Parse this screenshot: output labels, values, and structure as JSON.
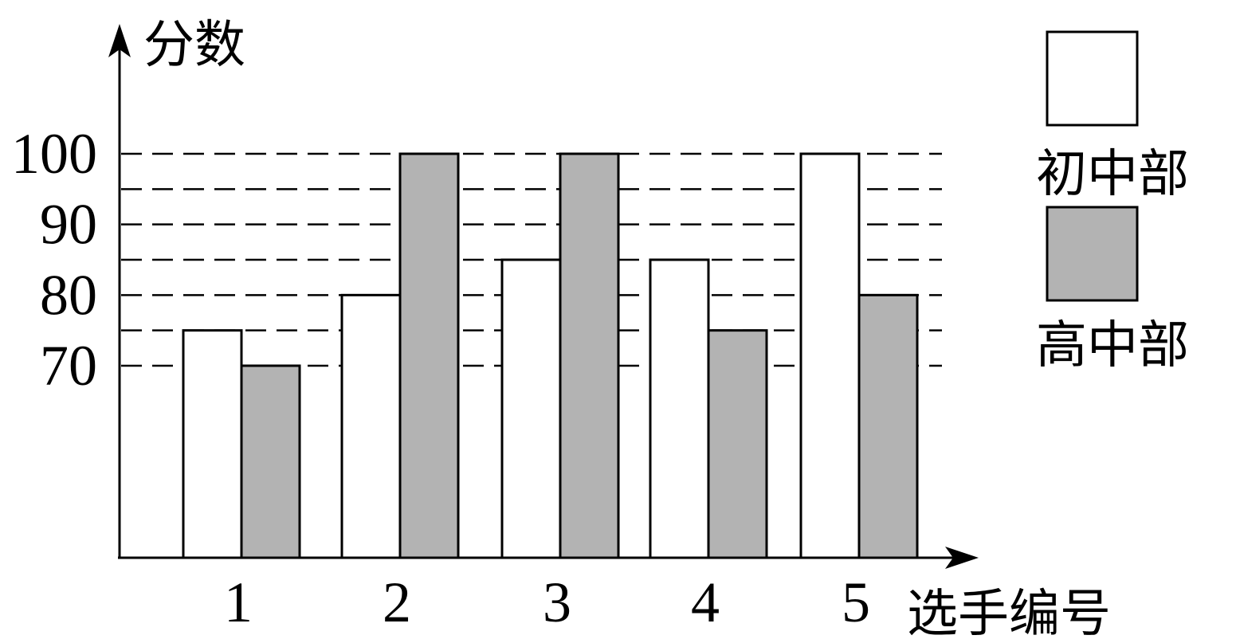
{
  "chart_data": {
    "type": "bar",
    "title": "",
    "xlabel": "选手编号",
    "ylabel": "分数",
    "categories": [
      "1",
      "2",
      "3",
      "4",
      "5"
    ],
    "y_tick_labels": [
      "70",
      "80",
      "90",
      "100"
    ],
    "ylim": [
      0,
      100
    ],
    "series": [
      {
        "name": "初中部",
        "values": [
          75,
          80,
          85,
          85,
          100
        ],
        "color": "#ffffff"
      },
      {
        "name": "高中部",
        "values": [
          70,
          100,
          100,
          75,
          80
        ],
        "color": "#b3b3b3"
      }
    ],
    "gridlines": [
      70,
      75,
      80,
      85,
      90,
      95,
      100
    ],
    "grid_style": "dashed",
    "legend": "top-right"
  }
}
